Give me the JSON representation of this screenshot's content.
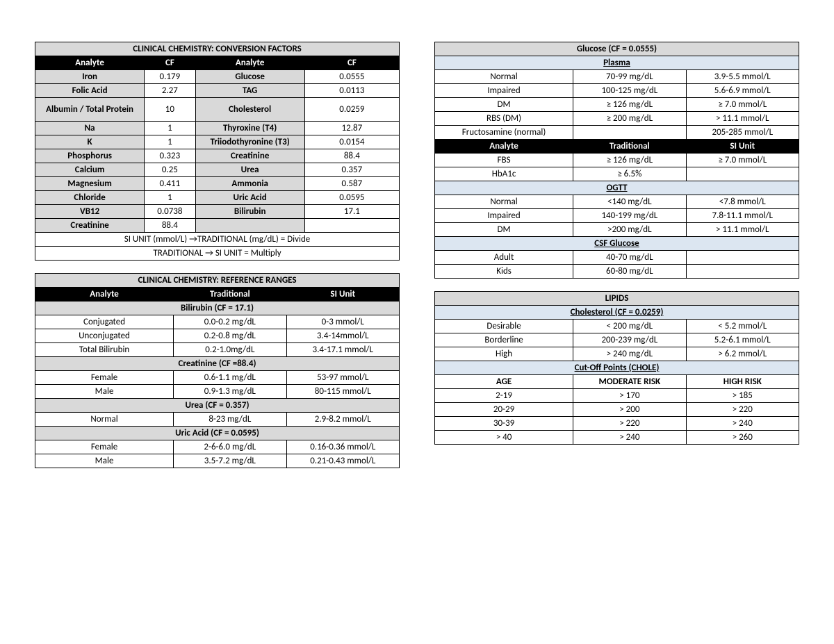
{
  "colors": {
    "header_grey": "#d9d9d9",
    "header_black": "#000000",
    "header_blue": "#dce6f1",
    "border": "#000000",
    "text": "#000000",
    "white": "#ffffff"
  },
  "left": {
    "conv": {
      "title": "CLINICAL CHEMISTRY: CONVERSION FACTORS",
      "head": [
        "Analyte",
        "CF",
        "Analyte",
        "CF"
      ],
      "rows": [
        [
          "Iron",
          "0.179",
          "Glucose",
          "0.0555"
        ],
        [
          "Folic Acid",
          "2.27",
          "TAG",
          "0.0113"
        ],
        [
          "Albumin / Total Protein",
          "10",
          "Cholesterol",
          "0.0259"
        ],
        [
          "Na",
          "1",
          "Thyroxine (T4)",
          "12.87"
        ],
        [
          "K",
          "1",
          "Triiodothyronine (T3)",
          "0.0154"
        ],
        [
          "Phosphorus",
          "0.323",
          "Creatinine",
          "88.4"
        ],
        [
          "Calcium",
          "0.25",
          "Urea",
          "0.357"
        ],
        [
          "Magnesium",
          "0.411",
          "Ammonia",
          "0.587"
        ],
        [
          "Chloride",
          "1",
          "Uric Acid",
          "0.0595"
        ],
        [
          "VB12",
          "0.0738",
          "Bilirubin",
          "17.1"
        ],
        [
          "Creatinine",
          "88.4",
          "",
          ""
        ]
      ],
      "note1": "SI UNIT (mmol/L) →TRADITIONAL (mg/dL) = Divide",
      "note2": "TRADITIONAL → SI UNIT = Multiply"
    },
    "ref": {
      "title": "CLINICAL CHEMISTRY: REFERENCE RANGES",
      "head": [
        "Analyte",
        "Traditional",
        "SI Unit"
      ],
      "sections": [
        {
          "title": "Bilirubin (CF = 17.1)",
          "rows": [
            [
              "Conjugated",
              "0.0-0.2 mg/dL",
              "0-3 mmol/L"
            ],
            [
              "Unconjugated",
              "0.2-0.8 mg/dL",
              "3.4-14mmol/L"
            ],
            [
              "Total Bilirubin",
              "0.2-1.0mg/dL",
              "3.4-17.1 mmol/L"
            ]
          ]
        },
        {
          "title": "Creatinine (CF =88.4)",
          "rows": [
            [
              "Female",
              "0.6-1.1 mg/dL",
              "53-97 mmol/L"
            ],
            [
              "Male",
              "0.9-1.3 mg/dL",
              "80-115 mmol/L"
            ]
          ]
        },
        {
          "title": "Urea (CF = 0.357)",
          "rows": [
            [
              "Normal",
              "8-23 mg/dL",
              "2.9-8.2 mmol/L"
            ]
          ]
        },
        {
          "title": "Uric Acid (CF = 0.0595)",
          "rows": [
            [
              "Female",
              "2-6-6.0 mg/dL",
              "0.16-0.36 mmol/L"
            ],
            [
              "Male",
              "3.5-7.2 mg/dL",
              "0.21-0.43 mmol/L"
            ]
          ]
        }
      ]
    }
  },
  "right": {
    "glucose": {
      "title": "Glucose (CF = 0.0555)",
      "plasma_title": "Plasma",
      "plasma_rows": [
        [
          "Normal",
          "70-99 mg/dL",
          "3.9-5.5 mmol/L"
        ],
        [
          "Impaired",
          "100-125 mg/dL",
          "5.6-6.9 mmol/L"
        ],
        [
          "DM",
          "≥ 126 mg/dL",
          "≥ 7.0 mmol/L"
        ],
        [
          "RBS (DM)",
          "≥ 200 mg/dL",
          "> 11.1 mmol/L"
        ],
        [
          "Fructosamine (normal)",
          "",
          "205-285 mmol/L"
        ]
      ],
      "black_head": [
        "Analyte",
        "Traditional",
        "SI Unit"
      ],
      "analyte_rows": [
        [
          "FBS",
          "≥ 126 mg/dL",
          "≥ 7.0 mmol/L"
        ],
        [
          "HbA1c",
          "≥ 6.5%",
          ""
        ]
      ],
      "ogtt_title": "OGTT",
      "ogtt_rows": [
        [
          "Normal",
          "<140 mg/dL",
          "<7.8 mmol/L"
        ],
        [
          "Impaired",
          "140-199 mg/dL",
          "7.8-11.1 mmol/L"
        ],
        [
          "DM",
          ">200 mg/dL",
          "> 11.1 mmol/L"
        ]
      ],
      "csf_title": "CSF Glucose",
      "csf_rows": [
        [
          "Adult",
          "40-70 mg/dL",
          ""
        ],
        [
          "Kids",
          "60-80 mg/dL",
          ""
        ]
      ]
    },
    "lipids": {
      "title": "LIPIDS",
      "chol_title": "Cholesterol (CF = 0.0259)",
      "chol_rows": [
        [
          "Desirable",
          "< 200 mg/dL",
          "< 5.2 mmol/L"
        ],
        [
          "Borderline",
          "200-239 mg/dL",
          "5.2-6.1 mmol/L"
        ],
        [
          "High",
          "> 240 mg/dL",
          "> 6.2 mmol/L"
        ]
      ],
      "cutoff_title": "Cut-Off Points (CHOLE)",
      "cutoff_head": [
        "AGE",
        "MODERATE RISK",
        "HIGH RISK"
      ],
      "cutoff_rows": [
        [
          "2-19",
          "> 170",
          "> 185"
        ],
        [
          "20-29",
          "> 200",
          "> 220"
        ],
        [
          "30-39",
          "> 220",
          "> 240"
        ],
        [
          "> 40",
          "> 240",
          "> 260"
        ]
      ]
    }
  }
}
